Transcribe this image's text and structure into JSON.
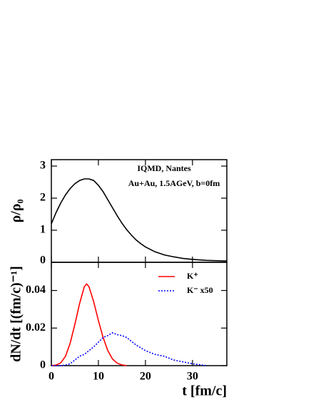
{
  "chart_data": [
    {
      "type": "line",
      "ylabel": "ρ/ρ₀",
      "annotations": [
        "IQMD, Nantes",
        "Au+Au, 1.5AGeV, b=0fm"
      ],
      "xlim": [
        0,
        37.3
      ],
      "xticks": [
        0,
        10,
        20,
        30
      ],
      "ylim": [
        0,
        3.2
      ],
      "yticks": [
        0,
        1,
        2,
        3
      ],
      "series": [
        {
          "color": "#000000",
          "style": "solid",
          "x": [
            0,
            1,
            2,
            3,
            4,
            5,
            6,
            7,
            8,
            9,
            10,
            11,
            12,
            13,
            14,
            15,
            16,
            17,
            18,
            19,
            20,
            22,
            24,
            26,
            28,
            30,
            33,
            37.3
          ],
          "values": [
            1.2,
            1.55,
            1.85,
            2.1,
            2.3,
            2.45,
            2.55,
            2.6,
            2.6,
            2.55,
            2.4,
            2.2,
            1.95,
            1.7,
            1.45,
            1.22,
            1.02,
            0.85,
            0.7,
            0.58,
            0.48,
            0.33,
            0.23,
            0.17,
            0.12,
            0.09,
            0.06,
            0.04
          ]
        }
      ]
    },
    {
      "type": "line",
      "xlabel": "t [fm/c]",
      "ylabel": "dN/dt [(fm/c)⁻¹]",
      "xlim": [
        0,
        37.3
      ],
      "xticks": [
        0,
        10,
        20,
        30
      ],
      "ylim": [
        0,
        0.055
      ],
      "yticks": [
        0,
        0.02,
        0.04
      ],
      "series": [
        {
          "name": "K⁺",
          "color": "#ff0000",
          "style": "solid",
          "x": [
            0,
            1,
            2,
            3,
            4,
            5,
            6,
            7,
            7.5,
            8,
            9,
            10,
            11,
            12,
            13,
            14,
            15,
            16
          ],
          "values": [
            0,
            0.0003,
            0.0015,
            0.005,
            0.012,
            0.022,
            0.033,
            0.042,
            0.0435,
            0.042,
            0.034,
            0.024,
            0.015,
            0.008,
            0.0035,
            0.0013,
            0.0004,
            0
          ]
        },
        {
          "name": "K⁻ x50",
          "color": "#0000ff",
          "style": "dotted",
          "x": [
            0,
            2,
            3,
            4,
            5,
            6,
            7,
            8,
            9,
            10,
            11,
            12,
            13,
            14,
            15,
            16,
            17,
            18,
            19,
            20,
            22,
            24,
            26,
            28,
            30,
            33
          ],
          "values": [
            0,
            0,
            0.0003,
            0.001,
            0.003,
            0.005,
            0.006,
            0.008,
            0.01,
            0.0125,
            0.015,
            0.016,
            0.0175,
            0.0165,
            0.016,
            0.015,
            0.013,
            0.011,
            0.0095,
            0.008,
            0.006,
            0.005,
            0.003,
            0.002,
            0.001,
            0
          ]
        }
      ]
    }
  ]
}
